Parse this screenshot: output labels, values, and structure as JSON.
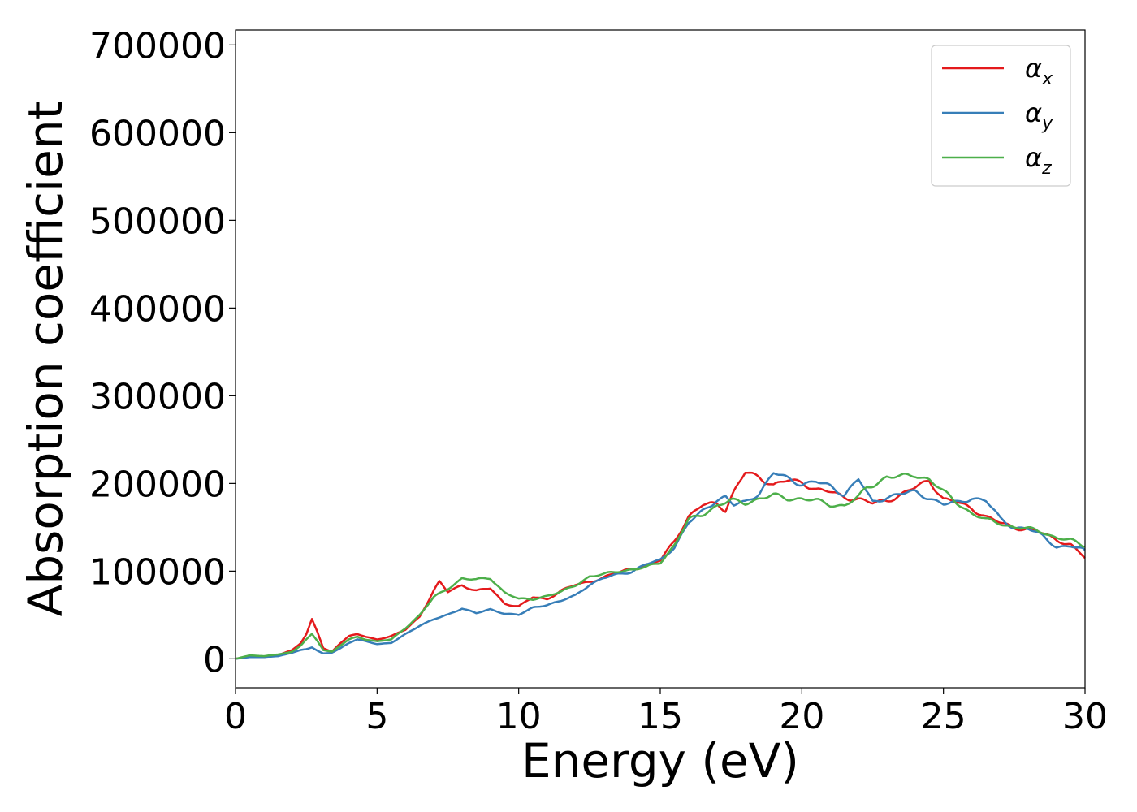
{
  "chart_data": {
    "type": "line",
    "title": "",
    "xlabel": "Energy (eV)",
    "ylabel": "Absorption coefficient",
    "xlim": [
      0,
      30
    ],
    "ylim": [
      -33000,
      717000
    ],
    "xticks": [
      0,
      5,
      10,
      15,
      20,
      25,
      30
    ],
    "xtick_labels": [
      "0",
      "5",
      "10",
      "15",
      "20",
      "25",
      "30"
    ],
    "yticks": [
      0,
      100000,
      200000,
      300000,
      400000,
      500000,
      600000,
      700000
    ],
    "ytick_labels": [
      "0",
      "100000",
      "200000",
      "300000",
      "400000",
      "500000",
      "600000",
      "700000"
    ],
    "grid": false,
    "legend_position": "top-right",
    "series": [
      {
        "name": "α",
        "subscript": "x",
        "color": "#e41a1c",
        "x": [
          0,
          0.5,
          1,
          1.5,
          2,
          2.3,
          2.5,
          2.7,
          2.9,
          3.1,
          3.4,
          3.7,
          4,
          4.3,
          4.6,
          5,
          5.5,
          6,
          6.5,
          7,
          7.2,
          7.5,
          8,
          8.5,
          9,
          9.5,
          10,
          10.5,
          11,
          11.5,
          12,
          12.5,
          13,
          13.5,
          14,
          14.5,
          15,
          15.5,
          16,
          16.5,
          17,
          17.3,
          17.6,
          18,
          18.5,
          19,
          19.5,
          20,
          20.5,
          21,
          21.5,
          22,
          22.5,
          23,
          23.5,
          24,
          24.5,
          25,
          25.5,
          26,
          26.5,
          27,
          27.5,
          28,
          28.5,
          29,
          29.5,
          30
        ],
        "y": [
          0,
          3000,
          2000,
          4000,
          10000,
          18000,
          28000,
          45000,
          30000,
          12000,
          8000,
          18000,
          26000,
          28000,
          25000,
          22000,
          26000,
          33000,
          48000,
          78000,
          88000,
          76000,
          84000,
          78000,
          80000,
          63000,
          60000,
          70000,
          68000,
          78000,
          84000,
          88000,
          93000,
          98000,
          103000,
          106000,
          112000,
          135000,
          162000,
          175000,
          178000,
          170000,
          190000,
          212000,
          208000,
          198000,
          203000,
          202000,
          193000,
          190000,
          185000,
          182000,
          177000,
          181000,
          187000,
          195000,
          204000,
          182000,
          178000,
          172000,
          162000,
          155000,
          150000,
          148000,
          143000,
          136000,
          130000,
          115000
        ]
      },
      {
        "name": "α",
        "subscript": "y",
        "color": "#377eb8",
        "x": [
          0,
          0.5,
          1,
          1.5,
          2,
          2.3,
          2.5,
          2.7,
          2.9,
          3.1,
          3.4,
          3.7,
          4,
          4.3,
          4.6,
          5,
          5.5,
          6,
          6.5,
          7,
          7.5,
          8,
          8.5,
          9,
          9.5,
          10,
          10.5,
          11,
          11.5,
          12,
          12.5,
          13,
          13.5,
          14,
          14.5,
          15,
          15.5,
          16,
          16.5,
          17,
          17.3,
          17.6,
          18,
          18.5,
          19,
          19.5,
          20,
          20.5,
          21,
          21.5,
          22,
          22.5,
          23,
          23.5,
          24,
          24.5,
          25,
          25.5,
          26,
          26.5,
          27,
          27.5,
          28,
          28.5,
          29,
          29.5,
          30
        ],
        "y": [
          0,
          2000,
          2000,
          3000,
          7000,
          10000,
          11000,
          13000,
          9000,
          6000,
          7000,
          12000,
          18000,
          22000,
          20000,
          17000,
          18000,
          28000,
          38000,
          45000,
          50000,
          58000,
          52000,
          56000,
          52000,
          50000,
          58000,
          62000,
          66000,
          72000,
          85000,
          92000,
          96000,
          100000,
          108000,
          112000,
          128000,
          155000,
          168000,
          182000,
          185000,
          175000,
          178000,
          190000,
          212000,
          205000,
          200000,
          202000,
          196000,
          188000,
          205000,
          178000,
          185000,
          188000,
          190000,
          184000,
          176000,
          178000,
          184000,
          180000,
          160000,
          150000,
          148000,
          140000,
          128000,
          128000,
          124000
        ]
      },
      {
        "name": "α",
        "subscript": "z",
        "color": "#4daf4a",
        "x": [
          0,
          0.5,
          1,
          1.5,
          2,
          2.3,
          2.5,
          2.7,
          2.9,
          3.1,
          3.4,
          3.7,
          4,
          4.3,
          4.6,
          5,
          5.5,
          6,
          6.5,
          7,
          7.5,
          8,
          8.5,
          9,
          9.5,
          10,
          10.5,
          11,
          11.5,
          12,
          12.5,
          13,
          13.5,
          14,
          14.5,
          15,
          15.5,
          16,
          16.5,
          17,
          17.5,
          18,
          18.5,
          19,
          19.5,
          20,
          20.5,
          21,
          21.5,
          22,
          22.3,
          22.6,
          23,
          23.5,
          24,
          24.5,
          25,
          25.5,
          26,
          26.5,
          27,
          27.5,
          28,
          28.5,
          29,
          29.5,
          30
        ],
        "y": [
          0,
          4000,
          3000,
          5000,
          8000,
          15000,
          22000,
          28000,
          20000,
          10000,
          8000,
          15000,
          22000,
          25000,
          22000,
          20000,
          22000,
          35000,
          50000,
          70000,
          80000,
          92000,
          90000,
          92000,
          76000,
          68000,
          68000,
          72000,
          76000,
          84000,
          94000,
          96000,
          100000,
          102000,
          104000,
          110000,
          130000,
          158000,
          165000,
          175000,
          180000,
          178000,
          183000,
          186000,
          183000,
          183000,
          180000,
          176000,
          175000,
          184000,
          195000,
          200000,
          208000,
          207000,
          210000,
          205000,
          190000,
          178000,
          166000,
          158000,
          155000,
          150000,
          148000,
          145000,
          138000,
          135000,
          128000
        ]
      }
    ]
  }
}
